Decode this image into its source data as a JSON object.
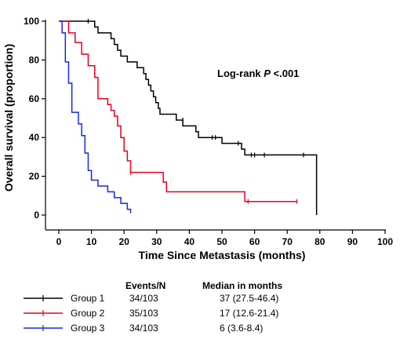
{
  "chart_data": {
    "type": "line",
    "subtype": "kaplan-meier",
    "xlabel": "Time Since Metastasis (months)",
    "ylabel": "Overall survival (proportion)",
    "xlim": [
      0,
      100
    ],
    "ylim": [
      0,
      100
    ],
    "xticks": [
      0,
      10,
      20,
      30,
      40,
      50,
      60,
      70,
      80,
      90,
      100
    ],
    "yticks": [
      0,
      20,
      40,
      60,
      80,
      100
    ],
    "grid": false,
    "annotation": {
      "prefix": "Log-rank ",
      "italic": "P",
      "suffix": " <.001"
    },
    "table_headers": {
      "events": "Events/N",
      "median": "Median in months"
    },
    "series": [
      {
        "name": "Group 1",
        "color": "#000000",
        "events": "34/103",
        "median": "37 (27.5-46.4)",
        "steps": [
          [
            0,
            100
          ],
          [
            11,
            97
          ],
          [
            12,
            94
          ],
          [
            16,
            91
          ],
          [
            17,
            88
          ],
          [
            18,
            85
          ],
          [
            19,
            82
          ],
          [
            21,
            79
          ],
          [
            24,
            76
          ],
          [
            26,
            73
          ],
          [
            26.7,
            70
          ],
          [
            27.5,
            67
          ],
          [
            28.2,
            64
          ],
          [
            29,
            61
          ],
          [
            29.7,
            58
          ],
          [
            30.5,
            55
          ],
          [
            31,
            52
          ],
          [
            36,
            49
          ],
          [
            38,
            46
          ],
          [
            42,
            43
          ],
          [
            42.8,
            40
          ],
          [
            50,
            37
          ],
          [
            56,
            34
          ],
          [
            57,
            31
          ],
          [
            79,
            0
          ]
        ],
        "end": 79,
        "censors": [
          [
            9,
            100
          ],
          [
            38,
            49
          ],
          [
            47,
            40
          ],
          [
            48,
            40
          ],
          [
            55,
            37
          ],
          [
            59,
            31
          ],
          [
            60,
            31
          ],
          [
            63,
            31
          ],
          [
            75,
            31
          ]
        ]
      },
      {
        "name": "Group 2",
        "color": "#e8001c",
        "steps": [
          [
            0,
            100
          ],
          [
            3,
            94
          ],
          [
            5,
            89
          ],
          [
            7,
            83
          ],
          [
            9,
            77
          ],
          [
            11,
            71
          ],
          [
            12,
            60
          ],
          [
            15,
            57
          ],
          [
            16,
            54
          ],
          [
            17,
            51
          ],
          [
            18,
            46
          ],
          [
            19,
            40
          ],
          [
            20,
            33
          ],
          [
            21,
            28
          ],
          [
            22,
            22
          ],
          [
            32,
            17
          ],
          [
            33,
            12
          ],
          [
            57,
            7
          ]
        ],
        "end": 73,
        "events": "35/103",
        "median": "17 (12.6-21.4)",
        "censors": [
          [
            22,
            22
          ],
          [
            58,
            7
          ],
          [
            73,
            7
          ]
        ]
      },
      {
        "name": "Group 3",
        "color": "#1a2bd8",
        "steps": [
          [
            0,
            100
          ],
          [
            1,
            94
          ],
          [
            2,
            79
          ],
          [
            3,
            68
          ],
          [
            4,
            53
          ],
          [
            6,
            47
          ],
          [
            7,
            41
          ],
          [
            8,
            32
          ],
          [
            9,
            23
          ],
          [
            10,
            18
          ],
          [
            12,
            15
          ],
          [
            15,
            12
          ],
          [
            17,
            9
          ],
          [
            19,
            6
          ],
          [
            21,
            3
          ],
          [
            22,
            1
          ]
        ],
        "end": 22,
        "events": "34/103",
        "median": "6 (3.6-8.4)",
        "censors": []
      }
    ]
  }
}
